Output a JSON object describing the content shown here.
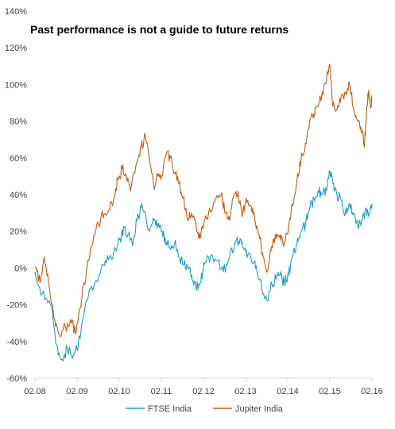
{
  "chart_data": {
    "type": "line",
    "title": "Past performance is not a guide to future returns",
    "xlabel": "",
    "ylabel": "",
    "x_ticks": [
      "02.08",
      "02.09",
      "02.10",
      "02.11",
      "02.12",
      "02.13",
      "02.14",
      "02.15",
      "02.16"
    ],
    "y_ticks": [
      "-60%",
      "-40%",
      "-20%",
      "0%",
      "20%",
      "40%",
      "60%",
      "80%",
      "100%",
      "120%",
      "140%"
    ],
    "ylim": [
      -60,
      140
    ],
    "xlim": [
      2008.08,
      2016.08
    ],
    "grid": false,
    "legend_position": "bottom",
    "series": [
      {
        "name": "FTSE India",
        "color": "#1F9BC9",
        "points": [
          [
            2008.08,
            -2
          ],
          [
            2008.25,
            -14
          ],
          [
            2008.45,
            -20
          ],
          [
            2008.6,
            -42
          ],
          [
            2008.7,
            -50
          ],
          [
            2008.85,
            -44
          ],
          [
            2009.0,
            -47
          ],
          [
            2009.1,
            -44
          ],
          [
            2009.2,
            -30
          ],
          [
            2009.35,
            -15
          ],
          [
            2009.5,
            -8
          ],
          [
            2009.7,
            2
          ],
          [
            2009.85,
            6
          ],
          [
            2010.0,
            10
          ],
          [
            2010.1,
            16
          ],
          [
            2010.2,
            22
          ],
          [
            2010.3,
            18
          ],
          [
            2010.4,
            12
          ],
          [
            2010.5,
            26
          ],
          [
            2010.6,
            33
          ],
          [
            2010.7,
            30
          ],
          [
            2010.8,
            20
          ],
          [
            2010.9,
            26
          ],
          [
            2011.0,
            24
          ],
          [
            2011.1,
            20
          ],
          [
            2011.2,
            14
          ],
          [
            2011.3,
            10
          ],
          [
            2011.4,
            14
          ],
          [
            2011.5,
            6
          ],
          [
            2011.6,
            2
          ],
          [
            2011.7,
            1
          ],
          [
            2011.8,
            -4
          ],
          [
            2011.9,
            -10
          ],
          [
            2012.0,
            -8
          ],
          [
            2012.1,
            2
          ],
          [
            2012.25,
            6
          ],
          [
            2012.4,
            4
          ],
          [
            2012.55,
            -2
          ],
          [
            2012.7,
            6
          ],
          [
            2012.85,
            14
          ],
          [
            2012.95,
            16
          ],
          [
            2013.05,
            10
          ],
          [
            2013.15,
            8
          ],
          [
            2013.3,
            4
          ],
          [
            2013.4,
            -6
          ],
          [
            2013.5,
            -14
          ],
          [
            2013.6,
            -18
          ],
          [
            2013.7,
            -8
          ],
          [
            2013.8,
            -6
          ],
          [
            2013.9,
            -4
          ],
          [
            2014.0,
            -8
          ],
          [
            2014.1,
            -4
          ],
          [
            2014.2,
            6
          ],
          [
            2014.3,
            14
          ],
          [
            2014.4,
            20
          ],
          [
            2014.5,
            24
          ],
          [
            2014.6,
            32
          ],
          [
            2014.7,
            38
          ],
          [
            2014.8,
            42
          ],
          [
            2014.9,
            40
          ],
          [
            2015.0,
            42
          ],
          [
            2015.08,
            53
          ],
          [
            2015.15,
            46
          ],
          [
            2015.25,
            40
          ],
          [
            2015.35,
            37
          ],
          [
            2015.45,
            30
          ],
          [
            2015.55,
            34
          ],
          [
            2015.65,
            30
          ],
          [
            2015.75,
            22
          ],
          [
            2015.85,
            26
          ],
          [
            2015.95,
            32
          ],
          [
            2016.0,
            28
          ],
          [
            2016.05,
            33
          ],
          [
            2016.08,
            35
          ]
        ]
      },
      {
        "name": "Jupiter India",
        "color": "#C55A11",
        "points": [
          [
            2008.08,
            0
          ],
          [
            2008.2,
            -8
          ],
          [
            2008.3,
            6
          ],
          [
            2008.4,
            -8
          ],
          [
            2008.55,
            -28
          ],
          [
            2008.65,
            -36
          ],
          [
            2008.8,
            -32
          ],
          [
            2008.95,
            -30
          ],
          [
            2009.05,
            -36
          ],
          [
            2009.15,
            -22
          ],
          [
            2009.25,
            -8
          ],
          [
            2009.35,
            4
          ],
          [
            2009.5,
            18
          ],
          [
            2009.65,
            28
          ],
          [
            2009.8,
            30
          ],
          [
            2009.95,
            38
          ],
          [
            2010.05,
            48
          ],
          [
            2010.15,
            54
          ],
          [
            2010.25,
            50
          ],
          [
            2010.35,
            42
          ],
          [
            2010.5,
            58
          ],
          [
            2010.6,
            66
          ],
          [
            2010.7,
            72
          ],
          [
            2010.8,
            58
          ],
          [
            2010.9,
            44
          ],
          [
            2011.0,
            50
          ],
          [
            2011.1,
            50
          ],
          [
            2011.2,
            62
          ],
          [
            2011.3,
            60
          ],
          [
            2011.4,
            52
          ],
          [
            2011.5,
            46
          ],
          [
            2011.6,
            38
          ],
          [
            2011.7,
            26
          ],
          [
            2011.8,
            30
          ],
          [
            2011.9,
            24
          ],
          [
            2012.0,
            16
          ],
          [
            2012.1,
            26
          ],
          [
            2012.2,
            30
          ],
          [
            2012.35,
            36
          ],
          [
            2012.5,
            40
          ],
          [
            2012.6,
            30
          ],
          [
            2012.7,
            26
          ],
          [
            2012.8,
            40
          ],
          [
            2012.9,
            42
          ],
          [
            2013.0,
            28
          ],
          [
            2013.1,
            38
          ],
          [
            2013.2,
            34
          ],
          [
            2013.3,
            26
          ],
          [
            2013.4,
            18
          ],
          [
            2013.5,
            6
          ],
          [
            2013.6,
            -2
          ],
          [
            2013.7,
            12
          ],
          [
            2013.8,
            16
          ],
          [
            2013.9,
            18
          ],
          [
            2014.0,
            14
          ],
          [
            2014.1,
            22
          ],
          [
            2014.2,
            34
          ],
          [
            2014.3,
            48
          ],
          [
            2014.4,
            60
          ],
          [
            2014.5,
            68
          ],
          [
            2014.6,
            80
          ],
          [
            2014.7,
            84
          ],
          [
            2014.8,
            88
          ],
          [
            2014.9,
            96
          ],
          [
            2015.0,
            102
          ],
          [
            2015.08,
            111
          ],
          [
            2015.15,
            88
          ],
          [
            2015.25,
            86
          ],
          [
            2015.35,
            94
          ],
          [
            2015.45,
            96
          ],
          [
            2015.55,
            100
          ],
          [
            2015.65,
            86
          ],
          [
            2015.75,
            80
          ],
          [
            2015.85,
            74
          ],
          [
            2015.9,
            66
          ],
          [
            2015.95,
            84
          ],
          [
            2016.0,
            97
          ],
          [
            2016.05,
            88
          ],
          [
            2016.08,
            94
          ]
        ]
      }
    ]
  }
}
